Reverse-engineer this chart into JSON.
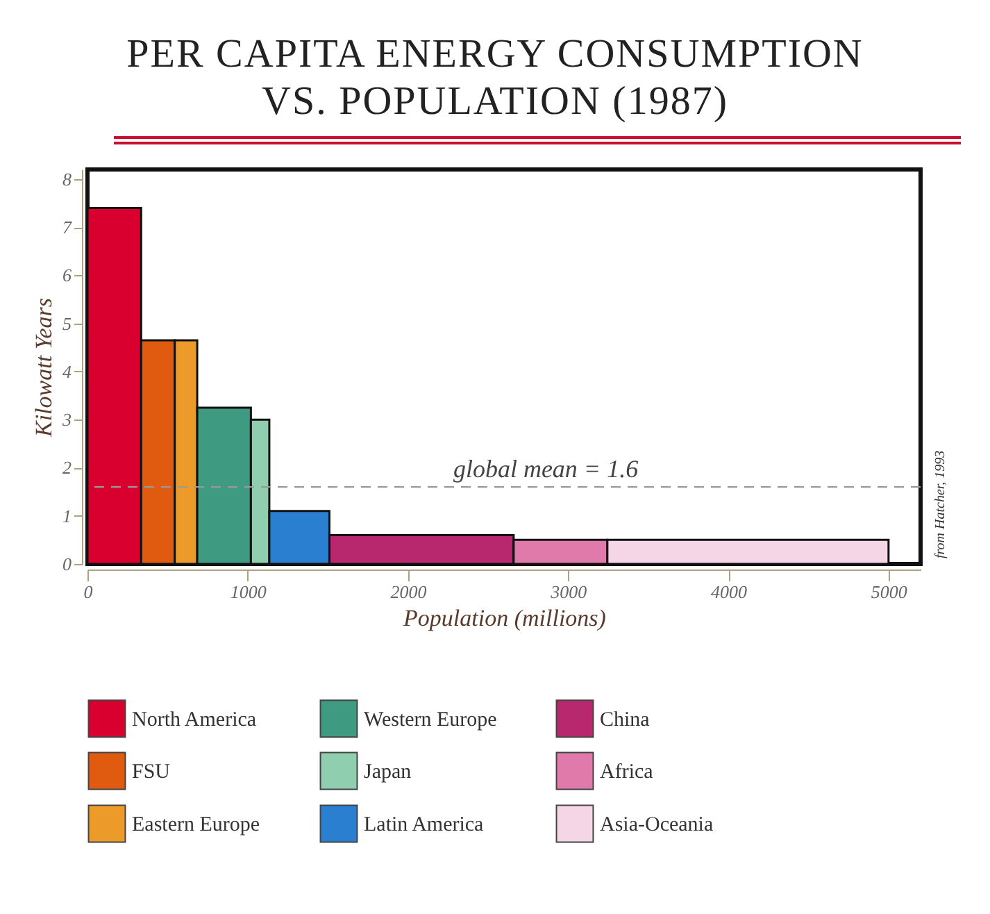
{
  "chart_data": {
    "type": "histogram",
    "title": "PER CAPITA ENERGY CONSUMPTION VS. POPULATION (1987)",
    "xlabel": "Population (millions)",
    "ylabel": "Kilowatt Years",
    "bins": [
      0,
      335,
      545,
      685,
      1020,
      1135,
      1510,
      2660,
      3245,
      5000
    ],
    "series": [
      {
        "name": "North America",
        "color": "#d9002f",
        "values": [
          7.4,
          null,
          null,
          null,
          null,
          null,
          null,
          null,
          null
        ]
      },
      {
        "name": "FSU",
        "color": "#e05a10",
        "values": [
          null,
          4.65,
          null,
          null,
          null,
          null,
          null,
          null,
          null
        ]
      },
      {
        "name": "Eastern Europe",
        "color": "#ec9a2a",
        "values": [
          null,
          null,
          4.65,
          null,
          null,
          null,
          null,
          null,
          null
        ]
      },
      {
        "name": "Western Europe",
        "color": "#3f9a82",
        "values": [
          null,
          null,
          null,
          3.25,
          null,
          null,
          null,
          null,
          null
        ]
      },
      {
        "name": "Japan",
        "color": "#8fcfb0",
        "values": [
          null,
          null,
          null,
          null,
          3.0,
          null,
          null,
          null,
          null
        ]
      },
      {
        "name": "Latin America",
        "color": "#2a7fd0",
        "values": [
          null,
          null,
          null,
          null,
          null,
          1.1,
          null,
          null,
          null
        ]
      },
      {
        "name": "China",
        "color": "#b8286f",
        "values": [
          null,
          null,
          null,
          null,
          null,
          null,
          0.6,
          null,
          null
        ]
      },
      {
        "name": "Africa",
        "color": "#e07aaa",
        "values": [
          null,
          null,
          null,
          null,
          null,
          null,
          null,
          0.5,
          null
        ]
      },
      {
        "name": "Asia-Oceania",
        "color": "#f5d6e6",
        "values": [
          null,
          null,
          null,
          null,
          null,
          null,
          null,
          null,
          0.5
        ]
      }
    ],
    "xlim": [
      0,
      5200
    ],
    "xticks": [
      0,
      1000,
      2000,
      3000,
      4000,
      5000
    ],
    "ylim": [
      0,
      8.2
    ],
    "yticks": [
      0,
      1,
      2,
      3,
      4,
      5,
      6,
      7,
      8
    ],
    "ref_lines": [
      {
        "axis": "y",
        "value": 1.6,
        "label": "global mean = 1.6",
        "color": "#999999",
        "line_style": "dashed"
      }
    ],
    "annotations": [
      "from Hatcher, 1993"
    ],
    "legend": "bottom",
    "grid": false
  }
}
